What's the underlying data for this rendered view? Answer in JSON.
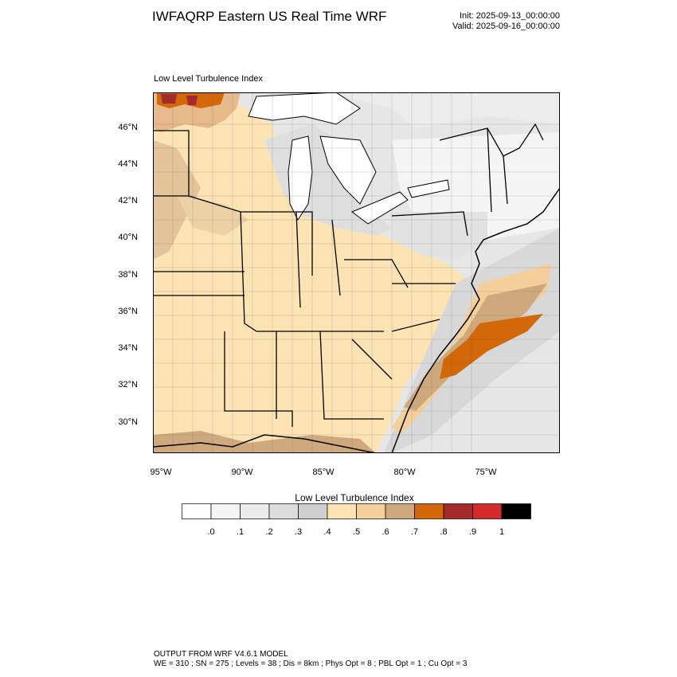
{
  "header": {
    "title": "IWFAQRP Eastern US Real Time WRF",
    "init": "Init: 2025-09-13_00:00:00",
    "valid": "Valid: 2025-09-16_00:00:00"
  },
  "map": {
    "field_label": "Low Level Turbulence Index",
    "lat_labels": [
      "46°N",
      "44°N",
      "42°N",
      "40°N",
      "38°N",
      "36°N",
      "34°N",
      "32°N",
      "30°N"
    ],
    "lon_labels": [
      "95°W",
      "90°W",
      "85°W",
      "80°W",
      "75°W"
    ]
  },
  "colorbar": {
    "title": "Low Level Turbulence Index",
    "labels": [
      ".0",
      ".1",
      ".2",
      ".3",
      ".4",
      ".5",
      ".6",
      ".7",
      ".8",
      ".9",
      "1"
    ],
    "colors": [
      "#ffffff",
      "#f4f4f4",
      "#ebebeb",
      "#dcdcdc",
      "#cfcfcf",
      "#fce3b4",
      "#f3cf9c",
      "#cfa97e",
      "#d2680a",
      "#a52a2a",
      "#d32b2b",
      "#000000"
    ]
  },
  "footer": {
    "line1": "OUTPUT FROM WRF V4.6.1 MODEL",
    "line2": "WE = 310 ; SN = 275 ; Levels = 38 ; Dis = 8km ; Phys Opt = 8 ; PBL Opt = 1 ; Cu Opt = 3"
  }
}
